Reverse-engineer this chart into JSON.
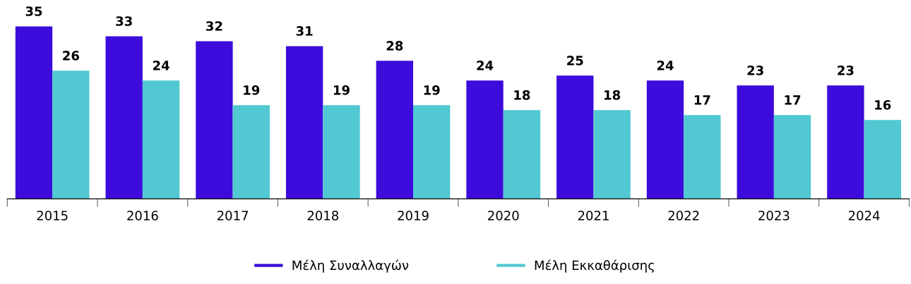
{
  "chart_data": {
    "type": "bar",
    "categories": [
      "2015",
      "2016",
      "2017",
      "2018",
      "2019",
      "2020",
      "2021",
      "2022",
      "2023",
      "2024"
    ],
    "series": [
      {
        "name": "Μέλη Συναλλαγών",
        "color": "#3d0bdb",
        "values": [
          35,
          33,
          32,
          31,
          28,
          24,
          25,
          24,
          23,
          23
        ]
      },
      {
        "name": "Μέλη Εκκαθάρισης",
        "color": "#52c8d2",
        "values": [
          26,
          24,
          19,
          19,
          19,
          18,
          18,
          17,
          17,
          16
        ]
      }
    ],
    "data_labels": true,
    "legend": "bottom",
    "grid": false
  }
}
